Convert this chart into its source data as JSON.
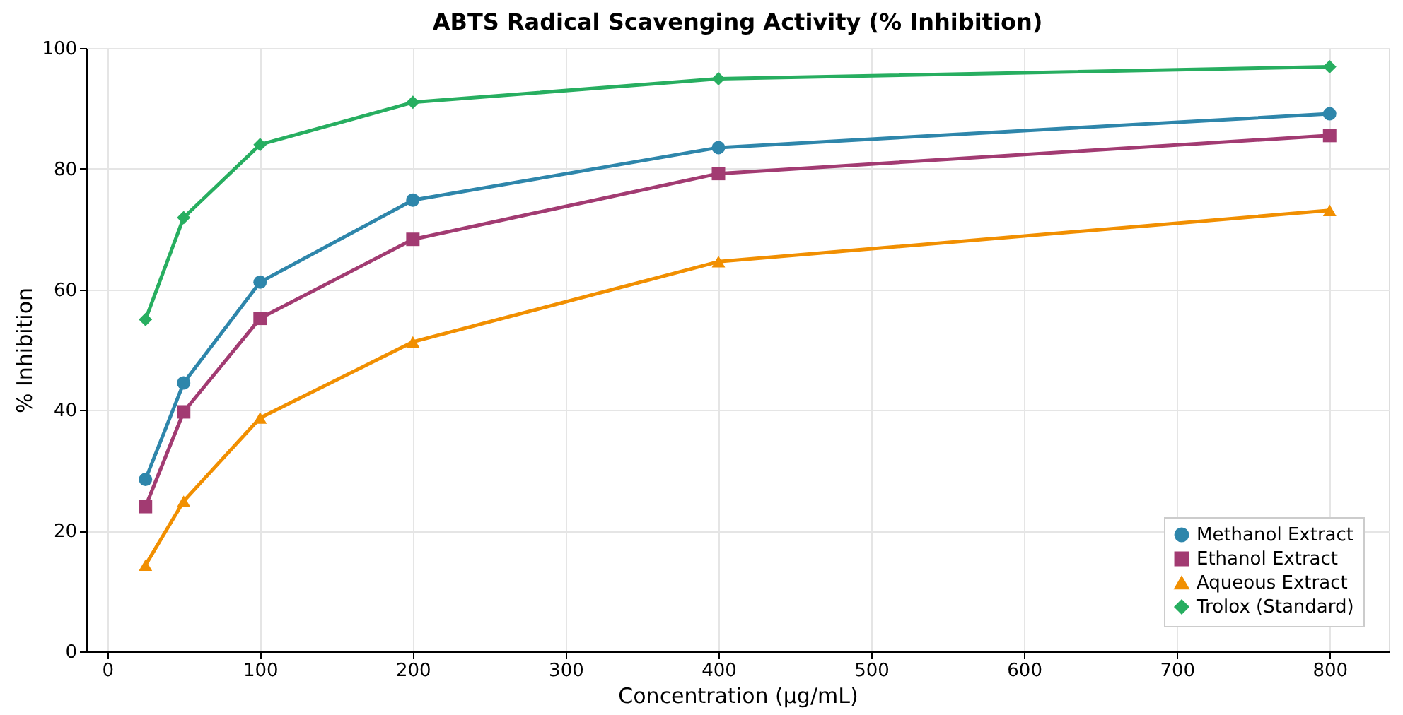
{
  "chart_data": {
    "type": "line",
    "title": "ABTS Radical Scavenging Activity (% Inhibition)",
    "xlabel": "Concentration (µg/mL)",
    "ylabel": "% Inhibition",
    "x": [
      25,
      50,
      100,
      200,
      400,
      800
    ],
    "series": [
      {
        "name": "Methanol Extract",
        "color": "#2e86ab",
        "marker": "circle",
        "values": [
          28.5,
          44.5,
          61.2,
          74.8,
          83.5,
          89.1
        ]
      },
      {
        "name": "Ethanol Extract",
        "color": "#a23b72",
        "marker": "square",
        "values": [
          24,
          39.7,
          55.2,
          68.3,
          79.2,
          85.5
        ]
      },
      {
        "name": "Aqueous Extract",
        "color": "#f18f01",
        "marker": "triangle",
        "values": [
          14.3,
          24.9,
          38.7,
          51.3,
          64.6,
          73.1
        ]
      },
      {
        "name": "Trolox (Standard)",
        "color": "#27ae60",
        "marker": "diamond",
        "values": [
          55,
          71.9,
          84,
          91,
          94.9,
          96.9
        ]
      }
    ],
    "xlim": [
      -13.75,
      838.75
    ],
    "xticks": [
      0,
      100,
      200,
      300,
      400,
      500,
      600,
      700,
      800
    ],
    "ylim": [
      0,
      100
    ],
    "yticks": [
      0,
      20,
      40,
      60,
      80,
      100
    ],
    "grid": true,
    "legend": "bottom right",
    "line_style": "solid"
  }
}
